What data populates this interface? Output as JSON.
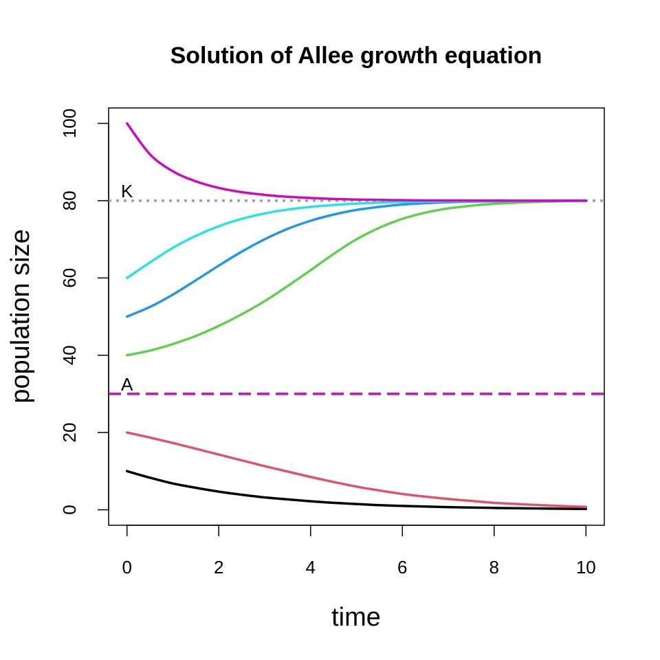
{
  "chart_data": {
    "type": "line",
    "title": "Solution of Allee growth equation",
    "xlabel": "time",
    "ylabel": "population size",
    "xlim": [
      -0.4,
      10.4
    ],
    "ylim": [
      -4,
      104
    ],
    "x_ticks": [
      "0",
      "2",
      "4",
      "6",
      "8",
      "10"
    ],
    "y_ticks": [
      "0",
      "20",
      "40",
      "60",
      "80",
      "100"
    ],
    "grid": false,
    "x": [
      0,
      0.5,
      1,
      1.5,
      2,
      2.5,
      3,
      3.5,
      4,
      4.5,
      5,
      5.5,
      6,
      6.5,
      7,
      7.5,
      8,
      8.5,
      9,
      9.5,
      10
    ],
    "series": [
      {
        "color": "#000000",
        "values": [
          10,
          8.3,
          6.8,
          5.7,
          4.7,
          3.9,
          3.2,
          2.7,
          2.2,
          1.8,
          1.5,
          1.2,
          1.0,
          0.85,
          0.7,
          0.58,
          0.48,
          0.4,
          0.33,
          0.27,
          0.22
        ]
      },
      {
        "color": "#DF536B",
        "values": [
          20,
          18.7,
          17.3,
          15.8,
          14.3,
          12.8,
          11.3,
          9.9,
          8.5,
          7.2,
          6.0,
          5.0,
          4.1,
          3.4,
          2.8,
          2.3,
          1.8,
          1.5,
          1.2,
          0.95,
          0.75
        ]
      },
      {
        "color": "#61D04F",
        "values": [
          40,
          41.2,
          42.9,
          45.0,
          47.6,
          50.6,
          54.0,
          57.9,
          62.0,
          66.2,
          70.0,
          73.0,
          75.3,
          76.9,
          78.0,
          78.7,
          79.2,
          79.5,
          79.7,
          79.85,
          79.92
        ]
      },
      {
        "color": "#2297E6",
        "values": [
          50,
          52.5,
          55.7,
          59.4,
          63.2,
          66.8,
          70.0,
          72.7,
          74.8,
          76.4,
          77.6,
          78.4,
          79.0,
          79.35,
          79.6,
          79.75,
          79.85,
          79.9,
          79.95,
          79.97,
          79.99
        ]
      },
      {
        "color": "#28E2E5",
        "values": [
          60,
          64.0,
          67.8,
          70.9,
          73.4,
          75.3,
          76.7,
          77.7,
          78.4,
          78.9,
          79.25,
          79.5,
          79.65,
          79.76,
          79.84,
          79.89,
          79.93,
          79.95,
          79.97,
          79.98,
          79.99
        ]
      },
      {
        "color": "#CD0BBC",
        "values": [
          100,
          92.0,
          87.6,
          85.0,
          83.3,
          82.2,
          81.5,
          81.0,
          80.7,
          80.45,
          80.3,
          80.2,
          80.13,
          80.08,
          80.05,
          80.03,
          80.02,
          80.01,
          80.01,
          80.0,
          80.0
        ]
      }
    ],
    "reference_lines": [
      {
        "label": "K",
        "y": 80,
        "style": "dotted",
        "color": "#9E9E9E"
      },
      {
        "label": "A",
        "y": 30,
        "style": "dashed",
        "color": "#CD0BBC"
      }
    ]
  }
}
